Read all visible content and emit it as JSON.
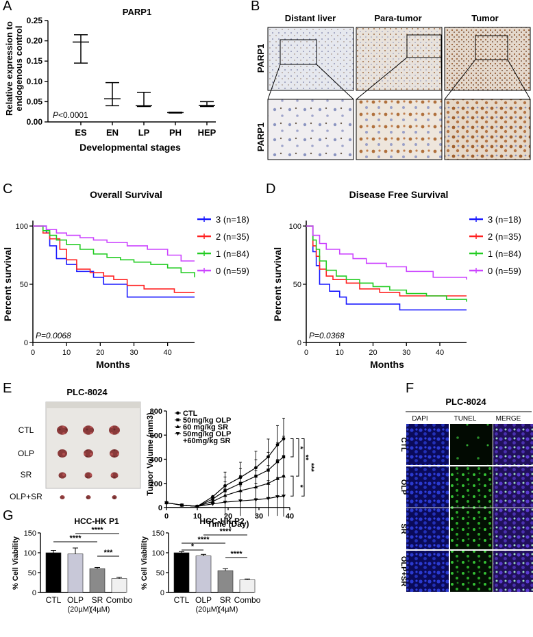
{
  "panel_labels": {
    "a": "A",
    "b": "B",
    "c": "C",
    "d": "D",
    "e": "E",
    "f": "F",
    "g": "G"
  },
  "colors": {
    "blue": "#1a1aff",
    "red": "#ff2020",
    "green": "#22cc22",
    "purple": "#cc44ff"
  },
  "panel_a": {
    "chart_data": {
      "type": "error-bar",
      "title": "PARP1",
      "ylabel": "Relative expression to endogenous control",
      "ylabel_line1": "Relative expression to",
      "ylabel_line2": "endogenous control",
      "xlabel": "Developmental stages",
      "categories": [
        "ES",
        "EN",
        "LP",
        "PH",
        "HEP"
      ],
      "mean": [
        0.197,
        0.057,
        0.04,
        0.023,
        0.041
      ],
      "upper": [
        0.215,
        0.097,
        0.073,
        0.024,
        0.05
      ],
      "lower": [
        0.145,
        0.04,
        0.038,
        0.022,
        0.038
      ],
      "ylim": [
        0,
        0.25
      ],
      "yticks": [
        "0.00",
        "0.05",
        "0.10",
        "0.15",
        "0.20",
        "0.25"
      ],
      "p_prefix": "P",
      "p_value": "<0.0001"
    }
  },
  "panel_b": {
    "columns": [
      "Distant liver",
      "Para-tumor",
      "Tumor"
    ],
    "row_labels": [
      "PARP1",
      "PARP1"
    ]
  },
  "panel_c": {
    "chart_data": {
      "type": "line",
      "title": "Overall Survival",
      "xlabel": "Months",
      "ylabel": "Percent survival",
      "xlim": [
        0,
        48
      ],
      "ylim": [
        0,
        100
      ],
      "xticks": [
        "0",
        "10",
        "20",
        "30",
        "40"
      ],
      "yticks": [
        "0",
        "50",
        "100"
      ],
      "p_text": "P=0.0068",
      "series": [
        {
          "name": "3 (n=18)",
          "color": "#1a1aff",
          "x": [
            0,
            4,
            5,
            7,
            10,
            13,
            18,
            21,
            28,
            48
          ],
          "y": [
            100,
            94,
            83,
            72,
            67,
            61,
            56,
            50,
            39,
            39
          ]
        },
        {
          "name": "2 (n=35)",
          "color": "#ff2020",
          "x": [
            0,
            3,
            5,
            8,
            10,
            13,
            17,
            21,
            24,
            28,
            33,
            42,
            48
          ],
          "y": [
            100,
            94,
            89,
            80,
            71,
            63,
            60,
            57,
            54,
            49,
            46,
            43,
            43
          ]
        },
        {
          "name": "1 (n=84)",
          "color": "#22cc22",
          "x": [
            0,
            3,
            5,
            7,
            10,
            14,
            18,
            22,
            26,
            30,
            35,
            40,
            44,
            48
          ],
          "y": [
            100,
            96,
            92,
            88,
            84,
            80,
            76,
            73,
            71,
            69,
            67,
            64,
            60,
            56
          ]
        },
        {
          "name": "0 (n=59)",
          "color": "#cc44ff",
          "x": [
            0,
            4,
            7,
            10,
            14,
            18,
            22,
            28,
            34,
            40,
            44,
            48
          ],
          "y": [
            100,
            97,
            94,
            92,
            90,
            88,
            86,
            83,
            80,
            75,
            70,
            70
          ]
        }
      ]
    }
  },
  "panel_d": {
    "chart_data": {
      "type": "line",
      "title": "Disease Free Survival",
      "xlabel": "Months",
      "ylabel": "Percent survival",
      "xlim": [
        0,
        48
      ],
      "ylim": [
        0,
        100
      ],
      "xticks": [
        "0",
        "10",
        "20",
        "30",
        "40"
      ],
      "yticks": [
        "0",
        "50",
        "100"
      ],
      "p_text": "P=0.0368",
      "series": [
        {
          "name": "3 (n=18)",
          "color": "#1a1aff",
          "x": [
            0,
            2,
            3,
            4,
            7,
            10,
            12,
            18,
            28,
            48
          ],
          "y": [
            100,
            78,
            66,
            50,
            44,
            39,
            33,
            33,
            28,
            28
          ]
        },
        {
          "name": "2 (n=35)",
          "color": "#ff2020",
          "x": [
            0,
            2,
            3,
            4,
            6,
            8,
            12,
            16,
            22,
            28,
            48
          ],
          "y": [
            100,
            83,
            74,
            63,
            57,
            54,
            51,
            46,
            43,
            40,
            40
          ]
        },
        {
          "name": "1 (n=84)",
          "color": "#22cc22",
          "x": [
            0,
            2,
            3,
            4,
            6,
            9,
            12,
            16,
            20,
            25,
            30,
            36,
            42,
            48
          ],
          "y": [
            100,
            88,
            80,
            70,
            62,
            57,
            54,
            51,
            48,
            45,
            42,
            40,
            37,
            35
          ]
        },
        {
          "name": "0 (n=59)",
          "color": "#cc44ff",
          "x": [
            0,
            2,
            4,
            6,
            10,
            14,
            18,
            24,
            30,
            38,
            48
          ],
          "y": [
            100,
            92,
            85,
            80,
            76,
            72,
            68,
            65,
            61,
            56,
            54
          ]
        }
      ]
    }
  },
  "panel_e": {
    "photo_title": "PLC-8024",
    "photo_rows": [
      "CTL",
      "OLP",
      "SR",
      "OLP+SR"
    ],
    "chart_data": {
      "type": "line",
      "xlabel": "Time (Day)",
      "ylabel": "Tumor Volume (mm3)",
      "xlim": [
        0,
        40
      ],
      "ylim": [
        0,
        800
      ],
      "xticks": [
        "0",
        "10",
        "20",
        "30",
        "40"
      ],
      "yticks": [
        "0",
        "200",
        "400",
        "600",
        "800"
      ],
      "legend": [
        "CTL",
        "50mg/kg OLP",
        "60 mg/kg SR",
        "50mg/kg OLP",
        "+60mg/kg SR"
      ],
      "x": [
        0,
        5,
        10,
        15,
        19,
        24,
        29,
        33,
        36,
        38
      ],
      "series": [
        {
          "name": "CTL",
          "marker": "circle",
          "values": [
            40,
            20,
            10,
            90,
            180,
            250,
            330,
            420,
            520,
            570
          ]
        },
        {
          "name": "50mg/kg OLP",
          "marker": "square",
          "values": [
            40,
            20,
            10,
            70,
            140,
            200,
            260,
            310,
            380,
            420
          ]
        },
        {
          "name": "60 mg/kg SR",
          "marker": "triangle-up",
          "values": [
            40,
            20,
            10,
            50,
            100,
            140,
            170,
            200,
            240,
            260
          ]
        },
        {
          "name": "50mg/kg OLP +60mg/kg SR",
          "marker": "triangle-down",
          "values": [
            40,
            20,
            10,
            30,
            45,
            55,
            65,
            75,
            90,
            95
          ]
        }
      ],
      "significance": [
        "*",
        "**",
        "***",
        "*"
      ]
    }
  },
  "panel_f": {
    "title": "PLC-8024",
    "columns": [
      "DAPI",
      "TUNEL",
      "MERGE"
    ],
    "rows": [
      "CTL",
      "OLP",
      "SR",
      "OLP+SR"
    ]
  },
  "panel_g1": {
    "chart_data": {
      "type": "bar",
      "title": "HCC-HK P1",
      "ylabel": "% Cell Viability",
      "categories": [
        "CTL",
        "OLP",
        "SR",
        "Combo"
      ],
      "sub_labels": [
        "(20µM)",
        "(4µM)"
      ],
      "values": [
        100,
        97,
        60,
        35
      ],
      "errors": [
        6,
        15,
        3,
        3
      ],
      "colors": [
        "#000000",
        "#c8c8d8",
        "#8a8a8a",
        "#f0f0f0"
      ],
      "ylim": [
        0,
        150
      ],
      "yticks": [
        "0",
        "50",
        "100",
        "150"
      ],
      "significance": [
        "****",
        "****",
        "***"
      ]
    }
  },
  "panel_g2": {
    "chart_data": {
      "type": "bar",
      "title": "HCC-HK P2",
      "ylabel": "% Cell Viability",
      "categories": [
        "CTL",
        "OLP",
        "SR",
        "Combo"
      ],
      "sub_labels": [
        "(20µM)",
        "(4µM)"
      ],
      "values": [
        100,
        92,
        55,
        32
      ],
      "errors": [
        3,
        4,
        5,
        2
      ],
      "colors": [
        "#000000",
        "#c8c8d8",
        "#8a8a8a",
        "#f0f0f0"
      ],
      "ylim": [
        0,
        150
      ],
      "yticks": [
        "0",
        "50",
        "100",
        "150"
      ],
      "significance": [
        "*",
        "****",
        "****",
        "****"
      ]
    }
  }
}
